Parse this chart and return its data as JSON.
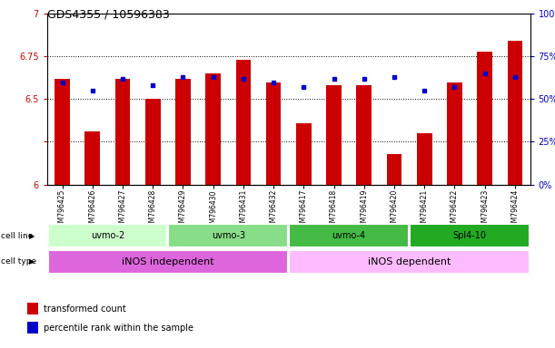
{
  "title": "GDS4355 / 10596383",
  "samples": [
    "GSM796425",
    "GSM796426",
    "GSM796427",
    "GSM796428",
    "GSM796429",
    "GSM796430",
    "GSM796431",
    "GSM796432",
    "GSM796417",
    "GSM796418",
    "GSM796419",
    "GSM796420",
    "GSM796421",
    "GSM796422",
    "GSM796423",
    "GSM796424"
  ],
  "bar_values": [
    6.62,
    6.31,
    6.62,
    6.5,
    6.62,
    6.65,
    6.73,
    6.6,
    6.36,
    6.58,
    6.58,
    6.18,
    6.3,
    6.6,
    6.78,
    6.84
  ],
  "dot_values": [
    60,
    55,
    62,
    58,
    63,
    63,
    62,
    60,
    57,
    62,
    62,
    63,
    55,
    57,
    65,
    63
  ],
  "bar_color": "#cc0000",
  "dot_color": "#0000cc",
  "ylim_left": [
    6.0,
    7.0
  ],
  "ylim_right": [
    0,
    100
  ],
  "yticks_left": [
    6.0,
    6.25,
    6.5,
    6.75,
    7.0
  ],
  "yticks_right": [
    0,
    25,
    50,
    75,
    100
  ],
  "ytick_labels_right": [
    "0%",
    "25%",
    "50%",
    "75%",
    "100%"
  ],
  "grid_values": [
    6.25,
    6.5,
    6.75
  ],
  "cell_line_groups": [
    {
      "label": "uvmo-2",
      "start": 0,
      "end": 3,
      "color": "#ccffcc"
    },
    {
      "label": "uvmo-3",
      "start": 4,
      "end": 7,
      "color": "#88dd88"
    },
    {
      "label": "uvmo-4",
      "start": 8,
      "end": 11,
      "color": "#44bb44"
    },
    {
      "label": "Spl4-10",
      "start": 12,
      "end": 15,
      "color": "#22aa22"
    }
  ],
  "cell_type_groups": [
    {
      "label": "iNOS independent",
      "start": 0,
      "end": 7,
      "color": "#dd66dd"
    },
    {
      "label": "iNOS dependent",
      "start": 8,
      "end": 15,
      "color": "#ffbbff"
    }
  ],
  "legend_items": [
    {
      "label": "transformed count",
      "color": "#cc0000"
    },
    {
      "label": "percentile rank within the sample",
      "color": "#0000cc"
    }
  ],
  "bar_width": 0.5,
  "left_tick_color": "#cc0000",
  "right_tick_color": "#0000cc"
}
